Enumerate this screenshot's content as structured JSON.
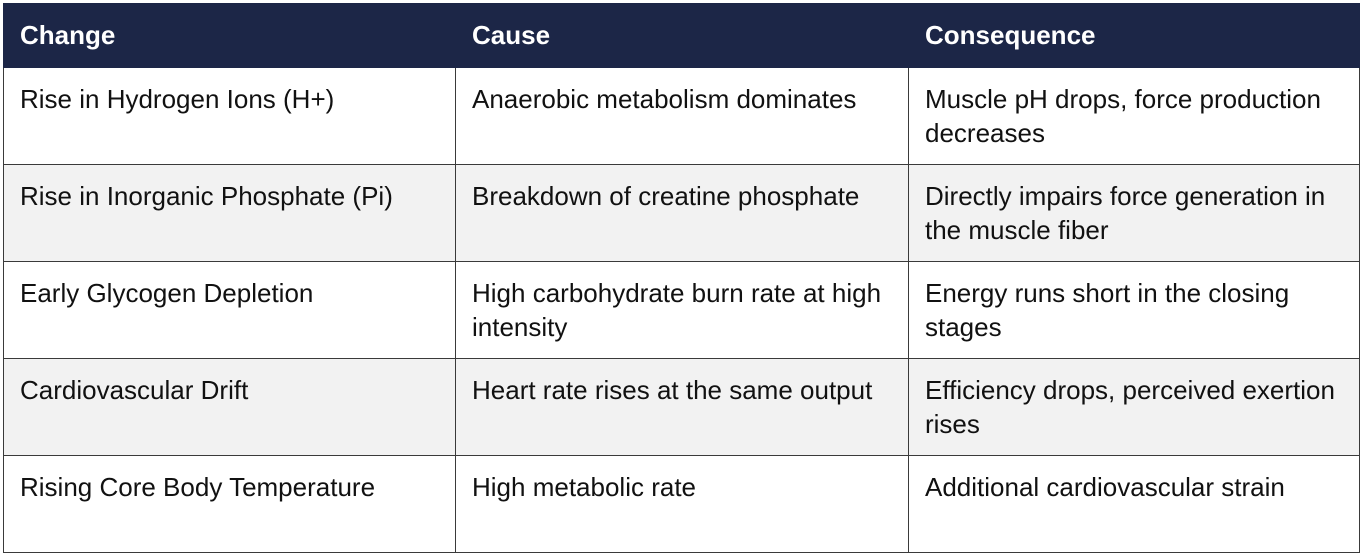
{
  "table": {
    "headers": [
      "Change",
      "Cause",
      "Consequence"
    ],
    "rows": [
      [
        "Rise in Hydrogen Ions (H+)",
        "Anaerobic metabolism dominates",
        "Muscle pH drops, force production decreases"
      ],
      [
        "Rise in Inorganic Phosphate (Pi)",
        "Breakdown of creatine phosphate",
        "Directly impairs force generation in the muscle fiber"
      ],
      [
        "Early Glycogen Depletion",
        "High carbohydrate burn rate at high intensity",
        "Energy runs short in the closing stages"
      ],
      [
        "Cardiovascular Drift",
        "Heart rate rises at the same output",
        "Efficiency drops, perceived exertion rises"
      ],
      [
        "Rising Core Body Temperature",
        "High metabolic rate",
        "Additional cardiovascular strain"
      ]
    ]
  },
  "colors": {
    "header_bg": "#1c2647",
    "header_text": "#ffffff",
    "alt_row_bg": "#f2f2f2",
    "border": "#3a3a3a"
  }
}
